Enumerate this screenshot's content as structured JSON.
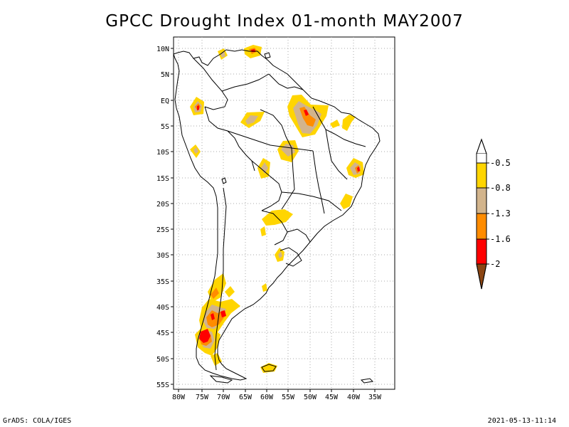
{
  "title": "GPCC Drought Index 01-month MAY2007",
  "footer": {
    "left": "GrADS: COLA/IGES",
    "right": "2021-05-13-11:14"
  },
  "axes": {
    "lat_labels": [
      "10N",
      "5N",
      "EQ",
      "5S",
      "10S",
      "15S",
      "20S",
      "25S",
      "30S",
      "35S",
      "40S",
      "45S",
      "50S",
      "55S"
    ],
    "lon_labels": [
      "80W",
      "75W",
      "70W",
      "65W",
      "60W",
      "55W",
      "50W",
      "45W",
      "40W",
      "35W"
    ]
  },
  "colors": {
    "band_light": "#ffd500",
    "band_tan": "#d2b48c",
    "band_orange": "#ff8c00",
    "band_red": "#ff0000",
    "band_brown": "#8b4513",
    "land_line": "#000000",
    "grid": "#aaaaaa"
  },
  "legend": {
    "labels": [
      "-0.5",
      "-0.8",
      "-1.3",
      "-1.6",
      "-2"
    ]
  }
}
